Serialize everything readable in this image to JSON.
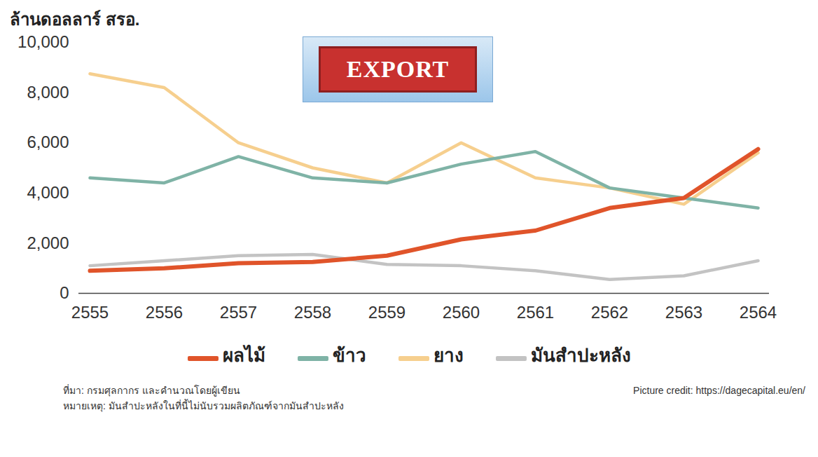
{
  "chart_data": {
    "type": "line",
    "ylabel": "ล้านดอลลาร์ สรอ.",
    "categories": [
      "2555",
      "2556",
      "2557",
      "2558",
      "2559",
      "2560",
      "2561",
      "2562",
      "2563",
      "2564"
    ],
    "series": [
      {
        "name": "ผลไม้",
        "color": "#e0542a",
        "values": [
          900,
          1000,
          1200,
          1250,
          1500,
          2150,
          2500,
          3400,
          3800,
          5750
        ]
      },
      {
        "name": "ข้าว",
        "color": "#7fb3a6",
        "values": [
          4600,
          4400,
          5450,
          4600,
          4400,
          5150,
          5650,
          4200,
          3800,
          3400
        ]
      },
      {
        "name": "ยาง",
        "color": "#f6cf8e",
        "values": [
          8750,
          8200,
          6000,
          5000,
          4400,
          6000,
          4600,
          4200,
          3550,
          5600
        ]
      },
      {
        "name": "มันสำปะหลัง",
        "color": "#c3c3c3",
        "values": [
          1100,
          1300,
          1500,
          1550,
          1150,
          1100,
          900,
          550,
          700,
          1300
        ]
      }
    ],
    "ylim": [
      0,
      10000
    ],
    "yticks": [
      0,
      {
        "value": 2000,
        "label": "2,000"
      },
      {
        "value": 4000,
        "label": "4,000"
      },
      {
        "value": 6000,
        "label": "6,000"
      },
      {
        "value": 8000,
        "label": "8,000"
      },
      {
        "value": 10000,
        "label": "10,000"
      }
    ],
    "grid": false,
    "legend": "bottom",
    "annotations": [
      "EXPORT"
    ],
    "source": "ที่มา: กรมศุลกากร และคำนวณโดยผู้เขียน",
    "note": "หมายเหตุ: มันสำปะหลังในที่นี้ไม่นับรวมผลิตภัณฑ์จากมันสำปะหลัง",
    "credit": "Picture credit: https://dagecapital.eu/en/"
  }
}
